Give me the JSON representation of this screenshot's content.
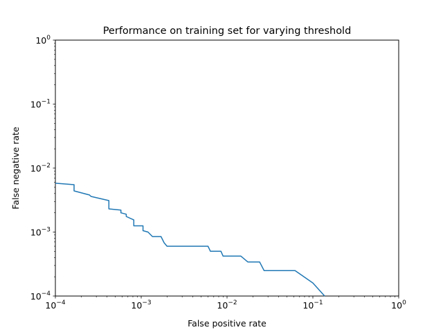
{
  "chart_data": {
    "type": "line",
    "title": "Performance on training set for varying threshold",
    "xlabel": "False positive rate",
    "ylabel": "False negative rate",
    "xscale": "log",
    "yscale": "log",
    "xlim": [
      0.0001,
      1
    ],
    "ylim": [
      0.0001,
      1
    ],
    "grid": false,
    "x_ticks": [
      {
        "value": 0.0001,
        "base": "10",
        "exp": "−4"
      },
      {
        "value": 0.001,
        "base": "10",
        "exp": "−3"
      },
      {
        "value": 0.01,
        "base": "10",
        "exp": "−2"
      },
      {
        "value": 0.1,
        "base": "10",
        "exp": "−1"
      },
      {
        "value": 1,
        "base": "10",
        "exp": "0"
      }
    ],
    "y_ticks": [
      {
        "value": 0.0001,
        "base": "10",
        "exp": "−4"
      },
      {
        "value": 0.001,
        "base": "10",
        "exp": "−3"
      },
      {
        "value": 0.01,
        "base": "10",
        "exp": "−2"
      },
      {
        "value": 0.1,
        "base": "10",
        "exp": "−1"
      },
      {
        "value": 1,
        "base": "10",
        "exp": "0"
      }
    ],
    "series": [
      {
        "color": "#1f77b4",
        "points": [
          [
            0.0001,
            0.0058
          ],
          [
            0.000165,
            0.0055
          ],
          [
            0.000165,
            0.0044
          ],
          [
            0.00025,
            0.0038
          ],
          [
            0.00026,
            0.0036
          ],
          [
            0.00042,
            0.0031
          ],
          [
            0.00042,
            0.0023
          ],
          [
            0.00058,
            0.0022
          ],
          [
            0.00058,
            0.002
          ],
          [
            0.00067,
            0.0019
          ],
          [
            0.00067,
            0.00175
          ],
          [
            0.00082,
            0.00155
          ],
          [
            0.00082,
            0.00125
          ],
          [
            0.00105,
            0.00125
          ],
          [
            0.00105,
            0.00105
          ],
          [
            0.0012,
            0.001
          ],
          [
            0.00135,
            0.00085
          ],
          [
            0.0017,
            0.00085
          ],
          [
            0.00185,
            0.00068
          ],
          [
            0.002,
            0.0006
          ],
          [
            0.006,
            0.0006
          ],
          [
            0.0064,
            0.0005
          ],
          [
            0.0085,
            0.0005
          ],
          [
            0.009,
            0.00042
          ],
          [
            0.0145,
            0.00042
          ],
          [
            0.0175,
            0.00034
          ],
          [
            0.024,
            0.00034
          ],
          [
            0.027,
            0.00025
          ],
          [
            0.062,
            0.00025
          ],
          [
            0.1,
            0.00016
          ],
          [
            0.137,
            0.0001
          ]
        ]
      }
    ]
  }
}
